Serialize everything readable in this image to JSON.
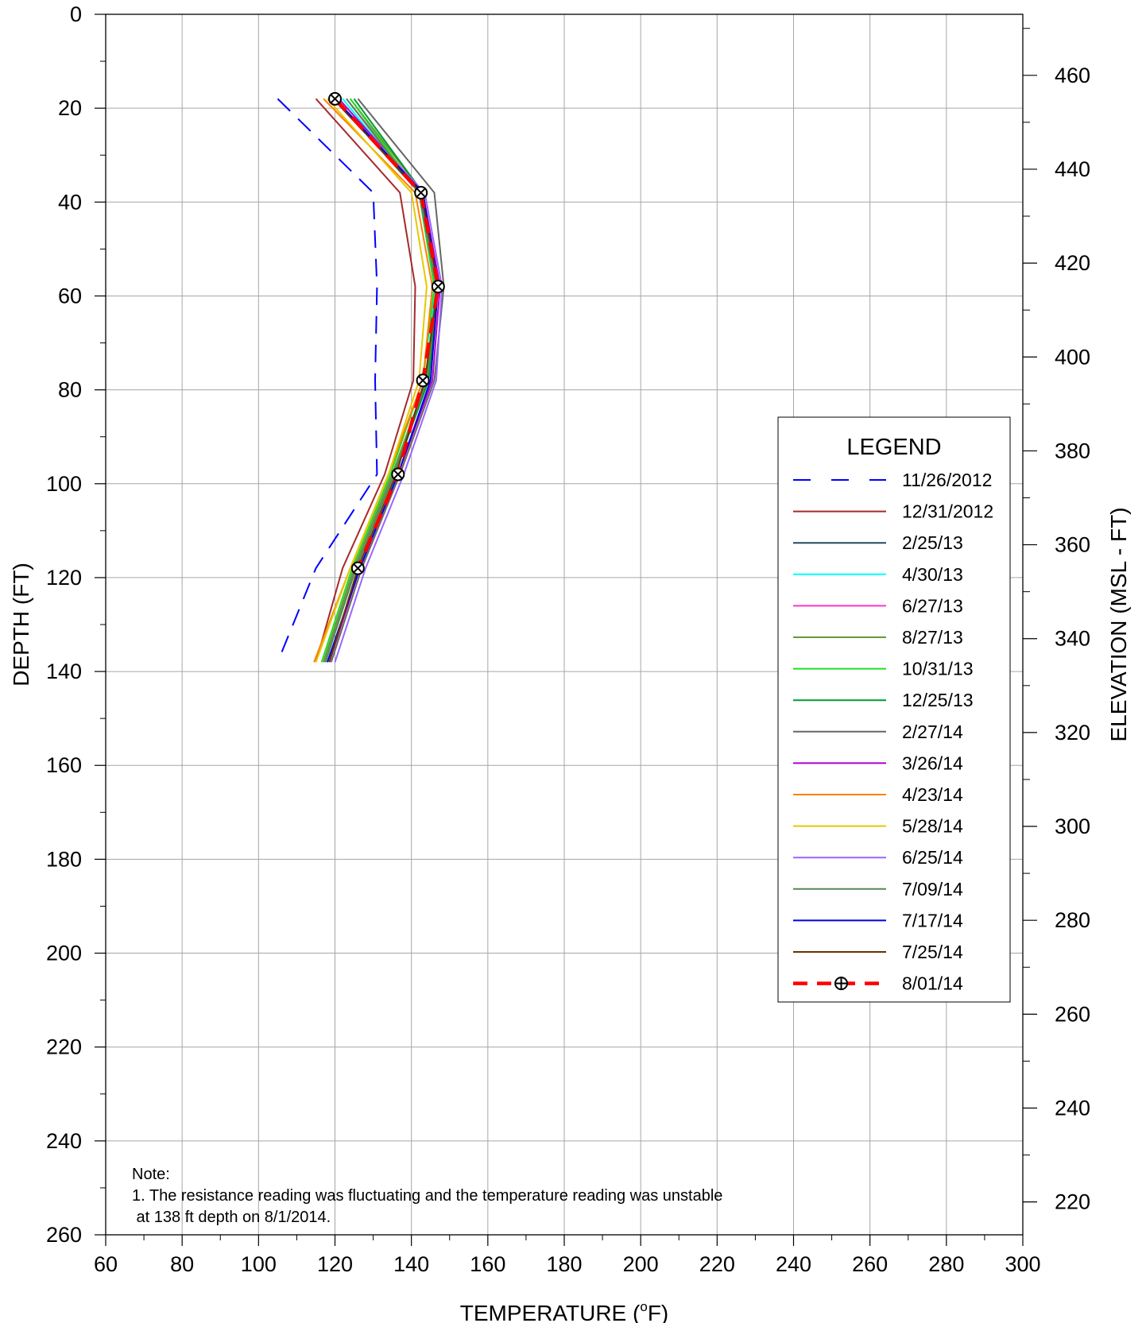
{
  "chart_data": {
    "type": "line",
    "xlabel": "TEMPERATURE (°F)",
    "ylabel": "DEPTH (FT)",
    "y2label": "ELEVATION (MSL - FT)",
    "xlim": [
      60,
      300
    ],
    "ylim": [
      0,
      260
    ],
    "y2lim": [
      473,
      213
    ],
    "x_ticks": [
      60,
      80,
      100,
      120,
      140,
      160,
      180,
      200,
      220,
      240,
      260,
      280,
      300
    ],
    "y_ticks": [
      0,
      20,
      40,
      60,
      80,
      100,
      120,
      140,
      160,
      180,
      200,
      220,
      240,
      260
    ],
    "y2_ticks": [
      460,
      440,
      420,
      400,
      380,
      360,
      340,
      320,
      300,
      280,
      260,
      240,
      220
    ],
    "grid": true,
    "legend_position": "right",
    "legend_title": "LEGEND",
    "depths": [
      18,
      38,
      58,
      78,
      98,
      118,
      138
    ],
    "series": [
      {
        "name": "11/26/2012",
        "color": "#0000ff",
        "style": "dashed",
        "values": [
          105,
          130,
          131,
          130.5,
          131,
          115,
          105
        ]
      },
      {
        "name": "12/31/2012",
        "color": "#a52a2a",
        "style": "solid",
        "values": [
          115,
          137,
          141,
          140.5,
          133,
          122,
          115
        ]
      },
      {
        "name": "2/25/13",
        "color": "#1f4e5a",
        "style": "solid",
        "values": [
          120,
          142,
          146,
          144,
          135,
          125,
          117
        ]
      },
      {
        "name": "4/30/13",
        "color": "#00ffff",
        "style": "solid",
        "values": [
          122,
          142,
          146,
          144,
          135,
          125,
          117
        ]
      },
      {
        "name": "6/27/13",
        "color": "#ff33cc",
        "style": "solid",
        "values": [
          123,
          142.5,
          146.5,
          144.5,
          135,
          125,
          117
        ]
      },
      {
        "name": "8/27/13",
        "color": "#669933",
        "style": "solid",
        "values": [
          124,
          143,
          147,
          144,
          135,
          125,
          117
        ]
      },
      {
        "name": "10/31/13",
        "color": "#22dd22",
        "style": "solid",
        "values": [
          124,
          142,
          146,
          143,
          134.5,
          124.5,
          116.5
        ]
      },
      {
        "name": "12/25/13",
        "color": "#009933",
        "style": "solid",
        "values": [
          125,
          143,
          147,
          144.5,
          135.5,
          125.5,
          117.5
        ]
      },
      {
        "name": "2/27/14",
        "color": "#666666",
        "style": "solid",
        "values": [
          126,
          146,
          148.5,
          146,
          137,
          127,
          119
        ]
      },
      {
        "name": "3/26/14",
        "color": "#aa00cc",
        "style": "solid",
        "values": [
          121,
          143,
          147.5,
          145.5,
          136.5,
          126.5,
          118.5
        ]
      },
      {
        "name": "4/23/14",
        "color": "#ff8000",
        "style": "solid",
        "values": [
          117,
          141,
          145.5,
          143,
          134,
          124,
          114.5
        ]
      },
      {
        "name": "5/28/14",
        "color": "#e6c800",
        "style": "solid",
        "values": [
          118,
          140,
          144,
          142,
          134,
          124,
          115
        ]
      },
      {
        "name": "6/25/14",
        "color": "#9966ff",
        "style": "solid",
        "values": [
          120,
          143.5,
          148,
          146.5,
          138,
          128,
          120
        ]
      },
      {
        "name": "7/09/14",
        "color": "#558855",
        "style": "solid",
        "values": [
          123,
          142,
          146.5,
          144,
          135.5,
          125.5,
          117.5
        ]
      },
      {
        "name": "7/17/14",
        "color": "#0000dd",
        "style": "solid",
        "values": [
          120,
          143,
          147,
          145,
          136.5,
          126.5,
          118
        ]
      },
      {
        "name": "7/25/14",
        "color": "#663300",
        "style": "solid",
        "values": [
          119.5,
          142.5,
          147,
          143.5,
          136,
          126,
          118.5
        ]
      },
      {
        "name": "8/01/14",
        "color": "#ff0000",
        "style": "dashed-marker",
        "values": [
          120,
          142.5,
          147,
          143,
          136.5,
          126,
          null
        ]
      }
    ]
  },
  "note": {
    "heading": "Note:",
    "line1": "1. The resistance reading was fluctuating and the temperature reading was unstable",
    "line2": " at 138 ft depth on 8/1/2014."
  }
}
